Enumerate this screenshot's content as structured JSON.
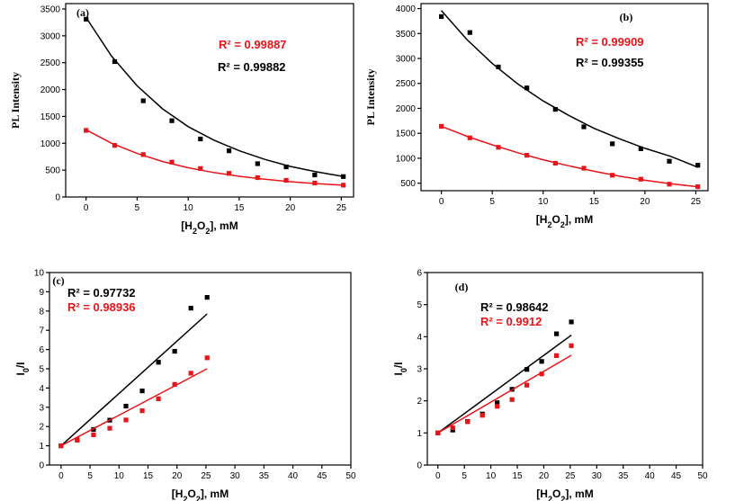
{
  "colors": {
    "black": "#000000",
    "red": "#e8141a"
  },
  "chart_data": [
    {
      "type": "scatter",
      "panel_label": "(a)",
      "xlabel": "[H2O2], mM",
      "ylabel": "PL Intensity",
      "xlim": [
        -2,
        26.2
      ],
      "ylim": [
        0,
        3600
      ],
      "xticks": [
        0,
        5,
        10,
        15,
        20,
        25
      ],
      "yticks": [
        0,
        500,
        1000,
        1500,
        2000,
        2500,
        3000,
        3500
      ],
      "fit": "exponential",
      "x": [
        0,
        2.8,
        5.6,
        8.4,
        11.2,
        14,
        16.8,
        19.6,
        22.4,
        25.2
      ],
      "series": [
        {
          "name": "black",
          "color": "#000000",
          "values": [
            3310,
            2520,
            1790,
            1420,
            1080,
            860,
            620,
            560,
            410,
            380
          ],
          "r2_label": "R² = 0.99882",
          "fit_x": [
            0,
            2.5,
            5,
            7.5,
            10,
            12.5,
            15,
            17.5,
            20,
            22.5,
            25.2
          ],
          "fit_y": [
            3340,
            2620,
            2070,
            1640,
            1310,
            1060,
            860,
            700,
            570,
            470,
            380
          ]
        },
        {
          "name": "red",
          "color": "#e8141a",
          "values": [
            1240,
            960,
            790,
            650,
            530,
            440,
            360,
            310,
            260,
            220
          ],
          "r2_label": "R² = 0.99887",
          "fit_x": [
            0,
            2.5,
            5,
            7.5,
            10,
            12.5,
            15,
            17.5,
            20,
            22.5,
            25.2
          ],
          "fit_y": [
            1250,
            1000,
            810,
            660,
            545,
            455,
            385,
            330,
            285,
            250,
            220
          ]
        }
      ]
    },
    {
      "type": "scatter",
      "panel_label": "(b)",
      "xlabel": "[H2O2], mM",
      "ylabel": "PL Intensity",
      "xlim": [
        -2,
        26.2
      ],
      "ylim": [
        350,
        4100
      ],
      "xticks": [
        0,
        5,
        10,
        15,
        20,
        25
      ],
      "yticks": [
        500,
        1000,
        1500,
        2000,
        2500,
        3000,
        3500,
        4000
      ],
      "fit": "exponential",
      "x": [
        0,
        2.8,
        5.6,
        8.4,
        11.2,
        14,
        16.8,
        19.6,
        22.4,
        25.2
      ],
      "series": [
        {
          "name": "red",
          "color": "#e8141a",
          "values": [
            1640,
            1410,
            1220,
            1060,
            900,
            800,
            660,
            580,
            480,
            430
          ],
          "r2_label": "R² = 0.99909",
          "fit_x": [
            0,
            2.5,
            5,
            7.5,
            10,
            12.5,
            15,
            17.5,
            20,
            22.5,
            25.2
          ],
          "fit_y": [
            1640,
            1440,
            1270,
            1110,
            970,
            850,
            740,
            640,
            560,
            490,
            430
          ]
        },
        {
          "name": "black",
          "color": "#000000",
          "values": [
            3840,
            3520,
            2830,
            2410,
            1980,
            1630,
            1290,
            1190,
            940,
            860
          ],
          "r2_label": "R² = 0.99355",
          "fit_x": [
            0,
            2.5,
            5,
            7.5,
            10,
            12.5,
            15,
            17.5,
            20,
            22.5,
            25.2
          ],
          "fit_y": [
            3960,
            3380,
            2900,
            2490,
            2150,
            1860,
            1600,
            1390,
            1200,
            1040,
            820
          ]
        }
      ]
    },
    {
      "type": "scatter",
      "panel_label": "(c)",
      "xlabel": "[H2O2], mM",
      "ylabel": "I0/I",
      "xlim": [
        -2,
        50
      ],
      "ylim": [
        0,
        10
      ],
      "xticks": [
        0,
        5,
        10,
        15,
        20,
        25,
        30,
        35,
        40,
        45,
        50
      ],
      "yticks": [
        0,
        1,
        2,
        3,
        4,
        5,
        6,
        7,
        8,
        9,
        10
      ],
      "fit": "linear",
      "x": [
        0,
        2.8,
        5.6,
        8.4,
        11.2,
        14,
        16.8,
        19.6,
        22.4,
        25.2
      ],
      "series": [
        {
          "name": "black",
          "color": "#000000",
          "values": [
            1.0,
            1.31,
            1.85,
            2.33,
            3.06,
            3.85,
            5.34,
            5.91,
            8.15,
            8.71
          ],
          "r2_label": "R² = 0.97732",
          "fit_x": [
            0,
            25.2
          ],
          "fit_y": [
            1.0,
            7.85
          ]
        },
        {
          "name": "red",
          "color": "#e8141a",
          "values": [
            1.0,
            1.29,
            1.57,
            1.91,
            2.34,
            2.82,
            3.44,
            4.19,
            4.77,
            5.57
          ],
          "r2_label": "R² = 0.98936",
          "fit_x": [
            0,
            25.2
          ],
          "fit_y": [
            1.0,
            5.0
          ]
        }
      ]
    },
    {
      "type": "scatter",
      "panel_label": "(d)",
      "xlabel": "[H2O2], mM",
      "ylabel": "I0/I",
      "xlim": [
        -2,
        50
      ],
      "ylim": [
        0,
        6
      ],
      "xticks": [
        0,
        5,
        10,
        15,
        20,
        25,
        30,
        35,
        40,
        45,
        50
      ],
      "yticks": [
        0,
        1,
        2,
        3,
        4,
        5,
        6
      ],
      "fit": "linear",
      "x": [
        0,
        2.8,
        5.6,
        8.4,
        11.2,
        14,
        16.8,
        19.6,
        22.4,
        25.2
      ],
      "series": [
        {
          "name": "black",
          "color": "#000000",
          "values": [
            1.0,
            1.09,
            1.36,
            1.59,
            1.94,
            2.36,
            2.98,
            3.23,
            4.09,
            4.46
          ],
          "r2_label": "R² = 0.98642",
          "fit_x": [
            0,
            25.2
          ],
          "fit_y": [
            1.0,
            4.05
          ]
        },
        {
          "name": "red",
          "color": "#e8141a",
          "values": [
            1.0,
            1.16,
            1.35,
            1.55,
            1.83,
            2.04,
            2.49,
            2.84,
            3.41,
            3.72
          ],
          "r2_label": "R² = 0.9912",
          "fit_x": [
            0,
            25.2
          ],
          "fit_y": [
            1.0,
            3.42
          ]
        }
      ]
    }
  ]
}
